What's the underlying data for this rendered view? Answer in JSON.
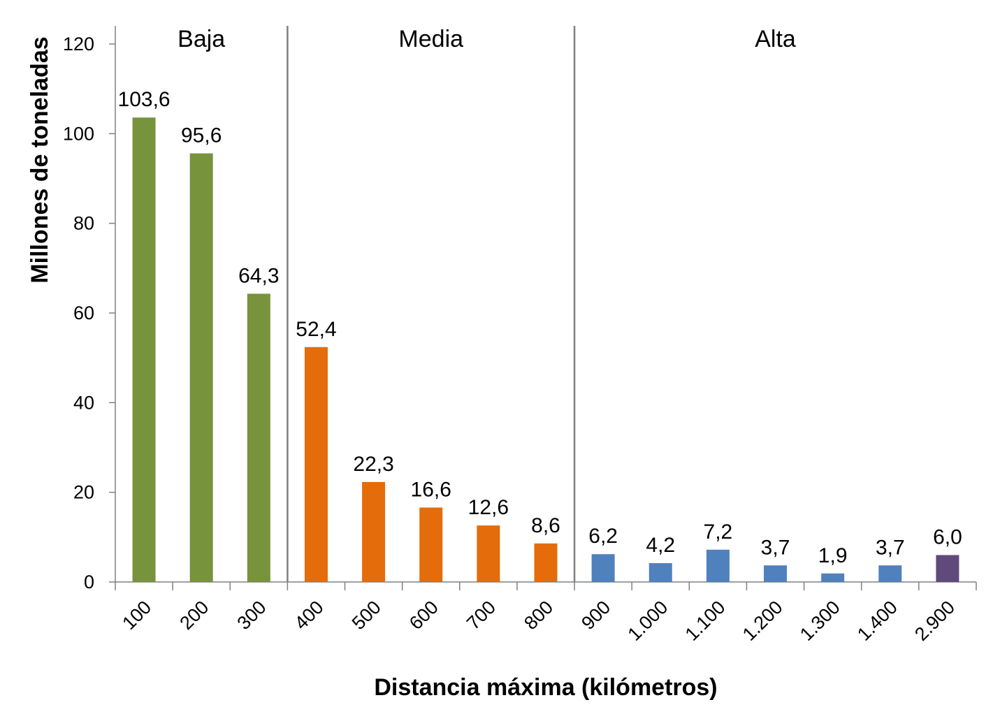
{
  "chart_data": {
    "type": "bar",
    "xlabel": "Distancia máxima (kilómetros)",
    "ylabel": "Millones de toneladas",
    "ylim": [
      0,
      120
    ],
    "yticks": [
      "0",
      "20",
      "40",
      "60",
      "80",
      "100",
      "120"
    ],
    "categories": [
      "100",
      "200",
      "300",
      "400",
      "500",
      "600",
      "700",
      "800",
      "900",
      "1.000",
      "1.100",
      "1.200",
      "1.300",
      "1.400",
      "2.900"
    ],
    "values": [
      103.6,
      95.6,
      64.3,
      52.4,
      22.3,
      16.6,
      12.6,
      8.6,
      6.2,
      4.2,
      7.2,
      3.7,
      1.9,
      3.7,
      6.0
    ],
    "value_labels": [
      "103,6",
      "95,6",
      "64,3",
      "52,4",
      "22,3",
      "16,6",
      "12,6",
      "8,6",
      "6,2",
      "4,2",
      "7,2",
      "3,7",
      "1,9",
      "3,7",
      "6,0"
    ],
    "bar_colors": [
      "#77933c",
      "#77933c",
      "#77933c",
      "#e46c0a",
      "#e46c0a",
      "#e46c0a",
      "#e46c0a",
      "#e46c0a",
      "#4f81bd",
      "#4f81bd",
      "#4f81bd",
      "#4f81bd",
      "#4f81bd",
      "#4f81bd",
      "#604a7b"
    ],
    "groups": [
      {
        "label": "Baja",
        "start": 0,
        "end": 2
      },
      {
        "label": "Media",
        "start": 3,
        "end": 7
      },
      {
        "label": "Alta",
        "start": 8,
        "end": 14
      }
    ],
    "grid": false,
    "legend": "none"
  }
}
